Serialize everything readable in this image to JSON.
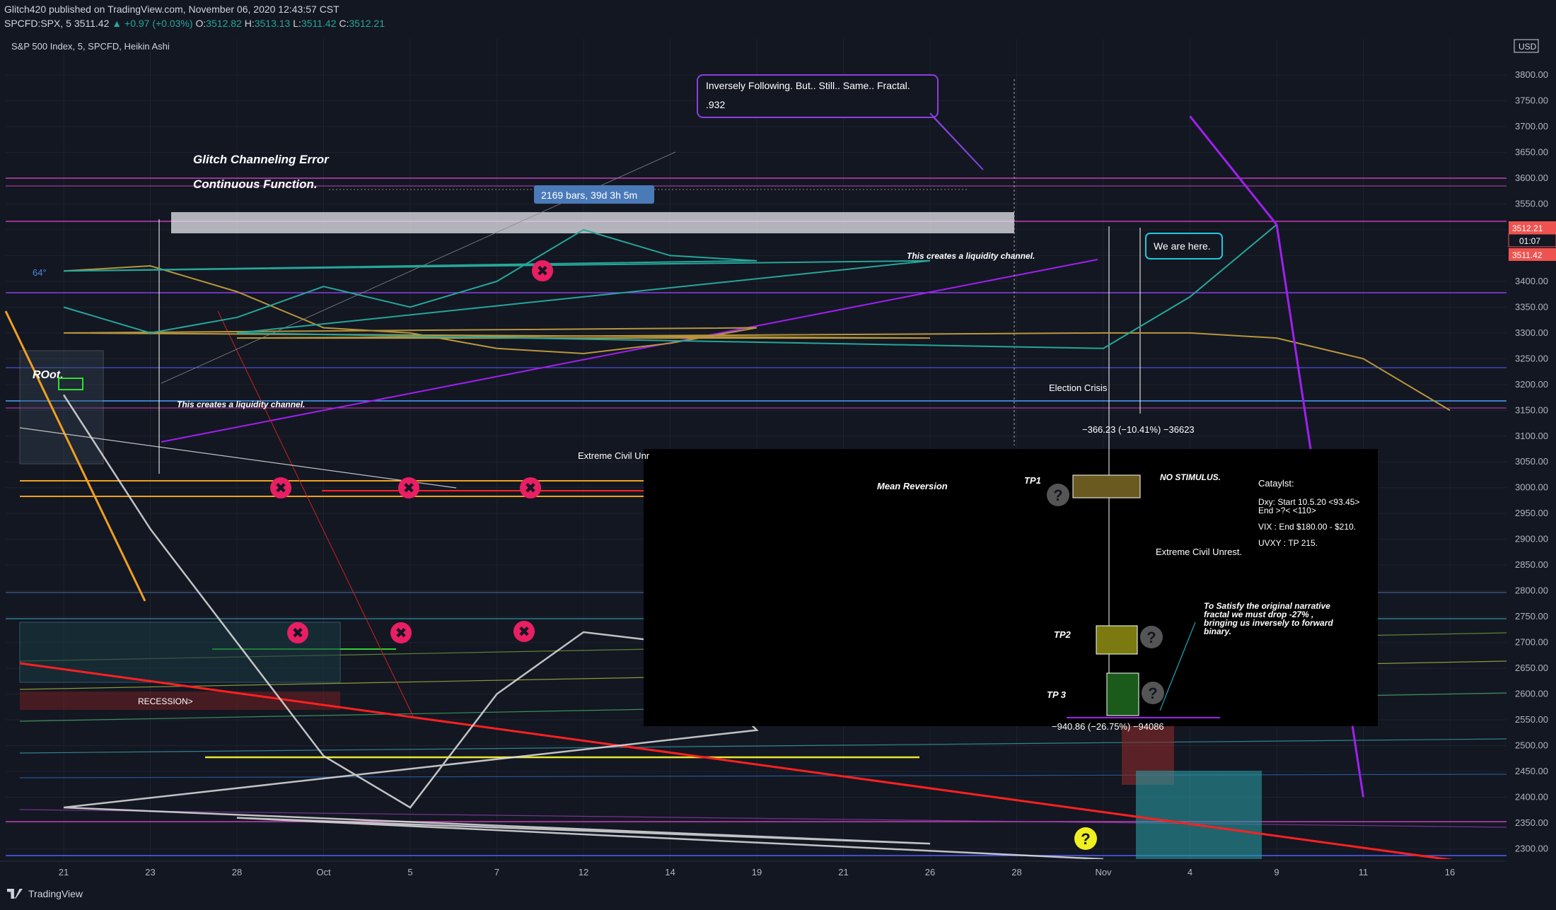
{
  "header": {
    "publisher_line": "Glitch420 published on TradingView.com, November 06, 2020 12:43:57 CST",
    "symbol": "SPCFD:SPX, 5",
    "last": "3511.42",
    "change": "▲ +0.97 (+0.03%)",
    "ohlc": {
      "o": "3512.82",
      "h": "3513.13",
      "l": "3511.42",
      "c": "3512.21"
    }
  },
  "chart_title": "S&P 500 Index, 5, SPCFD, Heikin Ashi",
  "footer_brand": "TradingView",
  "colors": {
    "background": "#131722",
    "up_candle": "#26a69a",
    "down_candle": "#ef5350",
    "purple": "#a020f0",
    "gold_ma": "#b8963c",
    "price_tag": "#ef5350",
    "cyan_callout": "#22c8dc",
    "fractal_white": "#e0e0e0"
  },
  "chart_data": {
    "type": "line",
    "title": "S&P 500 Index, 5, SPCFD, Heikin Ashi",
    "ylabel": "USD",
    "ylim": [
      2280,
      3870
    ],
    "y_ticks": [
      2300,
      2350,
      2400,
      2450,
      2500,
      2550,
      2600,
      2650,
      2700,
      2750,
      2800,
      2850,
      2900,
      2950,
      3000,
      3050,
      3100,
      3150,
      3200,
      3250,
      3300,
      3350,
      3400,
      3450,
      3500,
      3550,
      3600,
      3650,
      3700,
      3750,
      3800
    ],
    "x_ticks": [
      "21",
      "23",
      "28",
      "Oct",
      "5",
      "7",
      "12",
      "14",
      "19",
      "21",
      "26",
      "28",
      "Nov",
      "4",
      "9",
      "11",
      "16"
    ],
    "price_labels": {
      "current": "3512.21",
      "countdown": "01:07",
      "low": "3511.42"
    },
    "series": [
      {
        "name": "SPX price",
        "x": [
          "21",
          "23",
          "28",
          "Oct",
          "5",
          "7",
          "12",
          "14",
          "19",
          "21",
          "26",
          "28",
          "Nov",
          "4",
          "9"
        ],
        "y": [
          3350,
          3300,
          3330,
          3390,
          3350,
          3400,
          3500,
          3450,
          3440,
          3420,
          3440,
          3300,
          3270,
          3370,
          3510
        ]
      },
      {
        "name": "Moving average",
        "x": [
          "21",
          "23",
          "28",
          "Oct",
          "5",
          "7",
          "12",
          "14",
          "19",
          "21",
          "26",
          "28",
          "Nov",
          "4",
          "9",
          "11",
          "16"
        ],
        "y": [
          3420,
          3430,
          3380,
          3310,
          3300,
          3270,
          3260,
          3280,
          3310,
          3300,
          3290,
          3290,
          3300,
          3300,
          3290,
          3250,
          3150
        ]
      },
      {
        "name": "Fractal overlay",
        "x": [
          "21",
          "23",
          "28",
          "Oct",
          "5",
          "7",
          "12",
          "14",
          "19",
          "21",
          "26",
          "28",
          "Nov"
        ],
        "y": [
          3180,
          2920,
          2700,
          2480,
          2380,
          2600,
          2720,
          2700,
          2530,
          2380,
          2310,
          2360,
          2280
        ]
      },
      {
        "name": "Projection",
        "x": [
          "4",
          "9",
          "11"
        ],
        "y": [
          3720,
          3510,
          2400
        ]
      }
    ],
    "annotations": {
      "top_note": "Glitch Channeling Error",
      "top_note_2": "Continuous Function.",
      "bars_label": "2169 bars, 39d 3h 5m",
      "callout_1_line1": "Inversely Following. But.. Still.. Same.. Fractal.",
      "callout_1_line2": ".932",
      "callout_2": "We are here.",
      "liquidity_1": "This creates a liquidity channel.",
      "liquidity_2": "This creates a liquidity channel.",
      "root": "ROot.",
      "angle": "64°",
      "election": "Election Crisis",
      "measure_1": "−366.23 (−10.41%) −36623",
      "measure_2": "−940.86 (−26.75%) −94086",
      "recession": "RECESSION>",
      "civil_unrest_partial": "Extreme Civil Unr",
      "mean_reversion": "Mean Reversion",
      "tp1": "TP1",
      "tp2": "TP2",
      "tp3": "TP 3",
      "no_stimulus": "NO STIMULUS.",
      "catalyst_title": "Cataylst:",
      "catalyst_1": "Dxy: Start 10.5.20 <93.45>",
      "catalyst_1b": "End >?< <110>",
      "catalyst_2": "VIX : End $180.00 - $210.",
      "catalyst_3": "UVXY : TP 215.",
      "civil_unrest": "Extreme Civil Unrest.",
      "narrative_1": "To Satisfy the original narrative",
      "narrative_2": "fractal we must drop -27% ,",
      "narrative_3": "bringing us inversely to forward",
      "narrative_4": "binary.",
      "question": "?",
      "axis_currency": "USD"
    }
  }
}
